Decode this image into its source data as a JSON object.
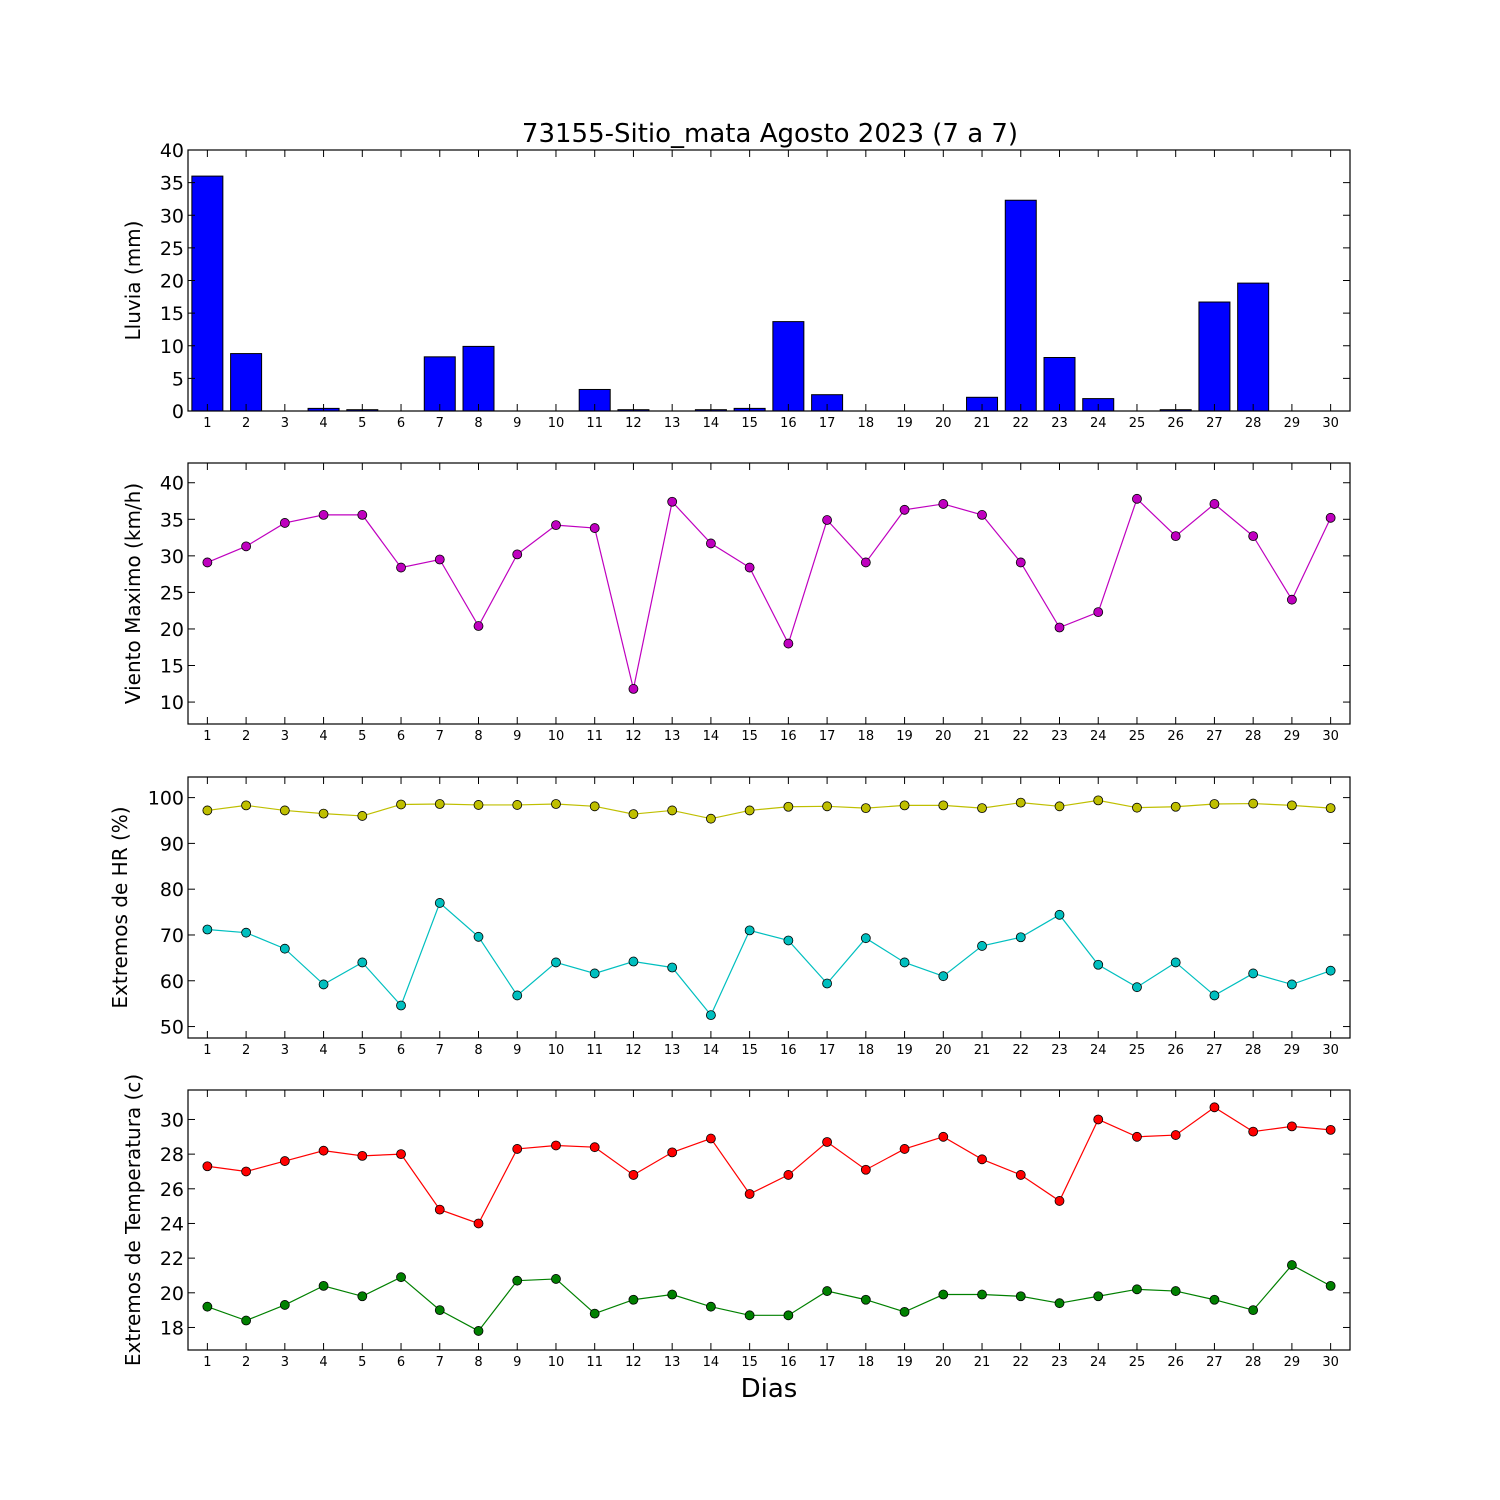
{
  "title": "73155-Sitio_mata Agosto 2023  (7 a 7)",
  "xlabel": "Dias",
  "colors": {
    "rain": "#0000ff",
    "wind": "#bf00bf",
    "hr_max": "#bfbf00",
    "hr_min": "#00bfbf",
    "t_max": "#ff0000",
    "t_min": "#008000"
  },
  "chart_data": [
    {
      "type": "bar",
      "ylabel": "Lluvia (mm)",
      "categories": [
        "1",
        "2",
        "3",
        "4",
        "5",
        "6",
        "7",
        "8",
        "9",
        "10",
        "11",
        "12",
        "13",
        "14",
        "15",
        "16",
        "17",
        "18",
        "19",
        "20",
        "21",
        "22",
        "23",
        "24",
        "25",
        "26",
        "27",
        "28",
        "29",
        "30"
      ],
      "values": [
        36.0,
        8.8,
        0,
        0.4,
        0.2,
        0,
        8.3,
        9.9,
        0,
        0,
        3.3,
        0.2,
        0,
        0.2,
        0.4,
        13.7,
        2.5,
        0,
        0,
        0,
        2.1,
        32.3,
        8.2,
        1.9,
        0,
        0.2,
        16.7,
        19.6,
        0,
        0
      ],
      "ylim": [
        0,
        40
      ],
      "yticks": [
        0,
        5,
        10,
        15,
        20,
        25,
        30,
        35,
        40
      ],
      "grid": false
    },
    {
      "type": "line",
      "ylabel": "Viento Maximo (km/h)",
      "x": [
        1,
        2,
        3,
        4,
        5,
        6,
        7,
        8,
        9,
        10,
        11,
        12,
        13,
        14,
        15,
        16,
        17,
        18,
        19,
        20,
        21,
        22,
        23,
        24,
        25,
        26,
        27,
        28,
        29,
        30
      ],
      "series": [
        {
          "values": [
            29.1,
            31.3,
            34.5,
            35.6,
            35.6,
            28.4,
            29.5,
            20.4,
            30.2,
            34.2,
            33.8,
            11.8,
            37.4,
            31.7,
            28.4,
            18.0,
            34.9,
            29.1,
            36.3,
            37.1,
            35.6,
            29.1,
            20.2,
            22.3,
            37.8,
            32.7,
            37.1,
            32.7,
            24.0,
            35.2
          ]
        }
      ],
      "ylim": [
        7.0,
        42.7
      ],
      "yticks": [
        10,
        15,
        20,
        25,
        30,
        35,
        40
      ],
      "grid": false
    },
    {
      "type": "line",
      "ylabel": "Extremos de HR (%)",
      "x": [
        1,
        2,
        3,
        4,
        5,
        6,
        7,
        8,
        9,
        10,
        11,
        12,
        13,
        14,
        15,
        16,
        17,
        18,
        19,
        20,
        21,
        22,
        23,
        24,
        25,
        26,
        27,
        28,
        29,
        30
      ],
      "series": [
        {
          "values": [
            97.2,
            98.3,
            97.2,
            96.5,
            96.0,
            98.5,
            98.6,
            98.4,
            98.4,
            98.6,
            98.1,
            96.4,
            97.2,
            95.4,
            97.2,
            98.0,
            98.1,
            97.7,
            98.3,
            98.3,
            97.7,
            98.9,
            98.1,
            99.4,
            97.8,
            98.0,
            98.6,
            98.7,
            98.3,
            97.7
          ]
        },
        {
          "values": [
            71.2,
            70.5,
            67.0,
            59.2,
            64.0,
            54.6,
            77.0,
            69.6,
            56.8,
            64.0,
            61.6,
            64.2,
            62.9,
            52.5,
            71.0,
            68.8,
            59.4,
            69.3,
            64.0,
            61.0,
            67.6,
            69.5,
            74.4,
            63.5,
            58.6,
            64.0,
            56.8,
            61.6,
            59.2,
            62.2
          ]
        }
      ],
      "ylim": [
        47.5,
        104.5
      ],
      "yticks": [
        50,
        60,
        70,
        80,
        90,
        100
      ],
      "grid": false
    },
    {
      "type": "line",
      "ylabel": "Extremos de Temperatura (c)",
      "x": [
        1,
        2,
        3,
        4,
        5,
        6,
        7,
        8,
        9,
        10,
        11,
        12,
        13,
        14,
        15,
        16,
        17,
        18,
        19,
        20,
        21,
        22,
        23,
        24,
        25,
        26,
        27,
        28,
        29,
        30
      ],
      "series": [
        {
          "values": [
            27.3,
            27.0,
            27.6,
            28.2,
            27.9,
            28.0,
            24.8,
            24.0,
            28.3,
            28.5,
            28.4,
            26.8,
            28.1,
            28.9,
            25.7,
            26.8,
            28.7,
            27.1,
            28.3,
            29.0,
            27.7,
            26.8,
            25.3,
            30.0,
            29.0,
            29.1,
            30.7,
            29.3,
            29.6,
            29.4
          ]
        },
        {
          "values": [
            19.2,
            18.4,
            19.3,
            20.4,
            19.8,
            20.9,
            19.0,
            17.8,
            20.7,
            20.8,
            18.8,
            19.6,
            19.9,
            19.2,
            18.7,
            18.7,
            20.1,
            19.6,
            18.9,
            19.9,
            19.9,
            19.8,
            19.4,
            19.8,
            20.2,
            20.1,
            19.6,
            19.0,
            21.6,
            20.4
          ]
        }
      ],
      "ylim": [
        16.7,
        31.7
      ],
      "yticks": [
        18,
        20,
        22,
        24,
        26,
        28,
        30
      ],
      "grid": false
    }
  ]
}
